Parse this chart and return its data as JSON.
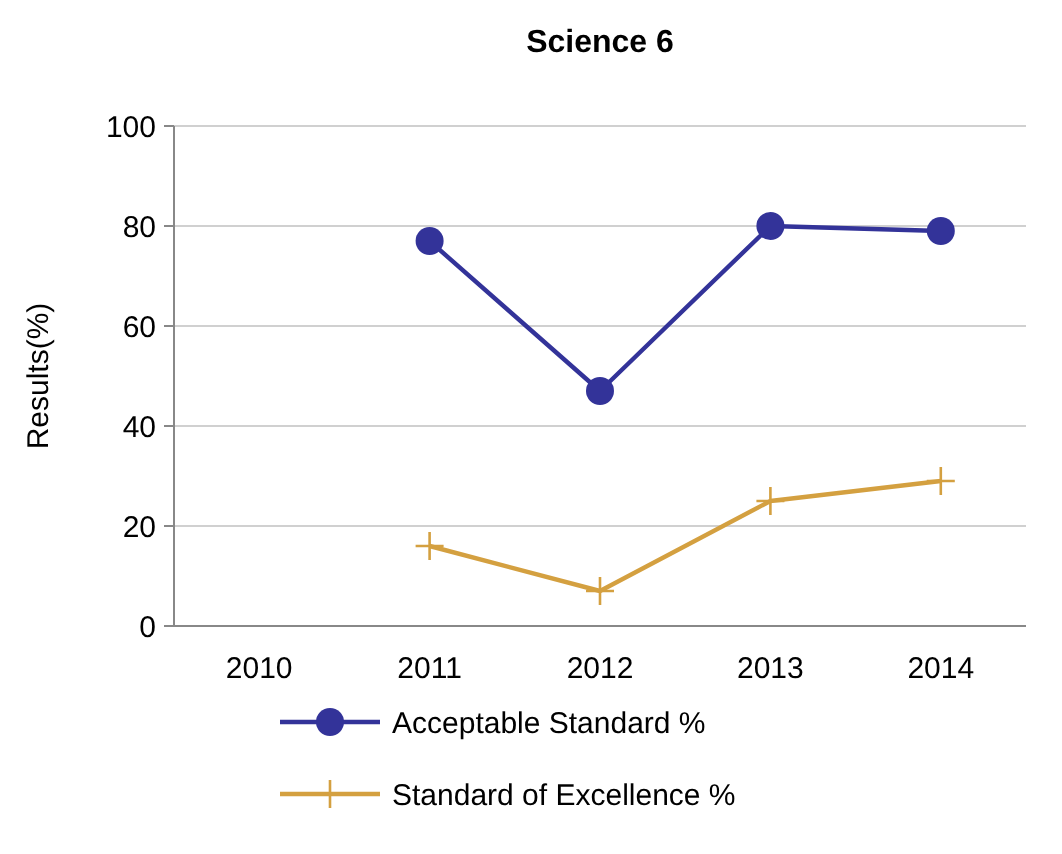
{
  "chart_data": {
    "type": "line",
    "title": "Science 6",
    "ylabel": "Results(%)",
    "categories": [
      "2010",
      "2011",
      "2012",
      "2013",
      "2014"
    ],
    "series": [
      {
        "name": "Acceptable Standard %",
        "color": "#333399",
        "marker": "circle",
        "values": [
          null,
          77,
          47,
          80,
          79
        ]
      },
      {
        "name": "Standard of Excellence %",
        "color": "#d4a040",
        "marker": "cross",
        "values": [
          null,
          16,
          7,
          25,
          29
        ]
      }
    ],
    "ylim": [
      0,
      100
    ],
    "yticks": [
      0,
      20,
      40,
      60,
      80,
      100
    ],
    "grid": "y",
    "legend": "bottom"
  }
}
